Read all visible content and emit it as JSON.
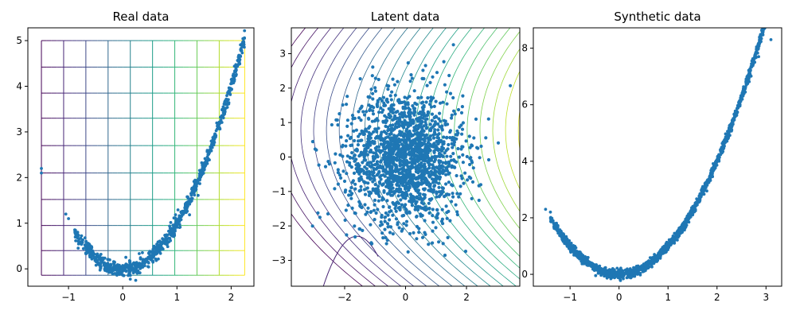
{
  "chart_data": [
    {
      "type": "scatter",
      "title": "Real data",
      "xlabel": "",
      "ylabel": "",
      "xlim": [
        -1.75,
        2.42
      ],
      "ylim": [
        -0.38,
        5.28
      ],
      "xticks": [
        -1,
        0,
        1,
        2
      ],
      "yticks": [
        0,
        1,
        2,
        3,
        4,
        5
      ],
      "grid_overlay": {
        "x_lines": [
          -1.5,
          -1.09,
          -0.68,
          -0.27,
          0.14,
          0.55,
          0.96,
          1.37,
          1.78,
          2.25
        ],
        "y_lines": [
          -0.14,
          0.4,
          0.95,
          1.52,
          2.1,
          2.7,
          3.3,
          3.85,
          4.42,
          5.0
        ],
        "colormap": "viridis"
      },
      "curve": {
        "a": 1.0,
        "x_range": [
          -0.9,
          2.25
        ],
        "noise": 0.08,
        "n_points": 900
      },
      "outliers": [
        [
          -1.5,
          2.2
        ],
        [
          -1.5,
          2.1
        ],
        [
          -1.05,
          1.2
        ],
        [
          -1.0,
          1.1
        ]
      ],
      "point_color": "#1f77b4"
    },
    {
      "type": "scatter",
      "title": "Latent data",
      "xlabel": "",
      "ylabel": "",
      "xlim": [
        -3.75,
        3.75
      ],
      "ylim": [
        -3.75,
        3.75
      ],
      "xticks": [
        -2,
        0,
        2
      ],
      "yticks": [
        -3,
        -2,
        -1,
        0,
        1,
        2,
        3
      ],
      "gaussian_cloud": {
        "mean": [
          0,
          0
        ],
        "std": [
          0.95,
          0.95
        ],
        "n_points": 1800
      },
      "contours": {
        "colormap": "viridis",
        "count": 22
      },
      "point_color": "#1f77b4"
    },
    {
      "type": "scatter",
      "title": "Synthetic data",
      "xlabel": "",
      "ylabel": "",
      "xlim": [
        -1.75,
        3.32
      ],
      "ylim": [
        -0.42,
        8.72
      ],
      "xticks": [
        -1,
        0,
        1,
        2,
        3
      ],
      "yticks": [
        0,
        2,
        4,
        6,
        8
      ],
      "curve": {
        "a": 1.0,
        "x_range": [
          -1.4,
          3.1
        ],
        "noise": 0.08,
        "n_points": 1600
      },
      "outliers": [
        [
          -1.5,
          2.3
        ],
        [
          -1.4,
          2.2
        ],
        [
          2.85,
          7.7
        ],
        [
          3.1,
          8.3
        ]
      ],
      "point_color": "#1f77b4"
    }
  ]
}
